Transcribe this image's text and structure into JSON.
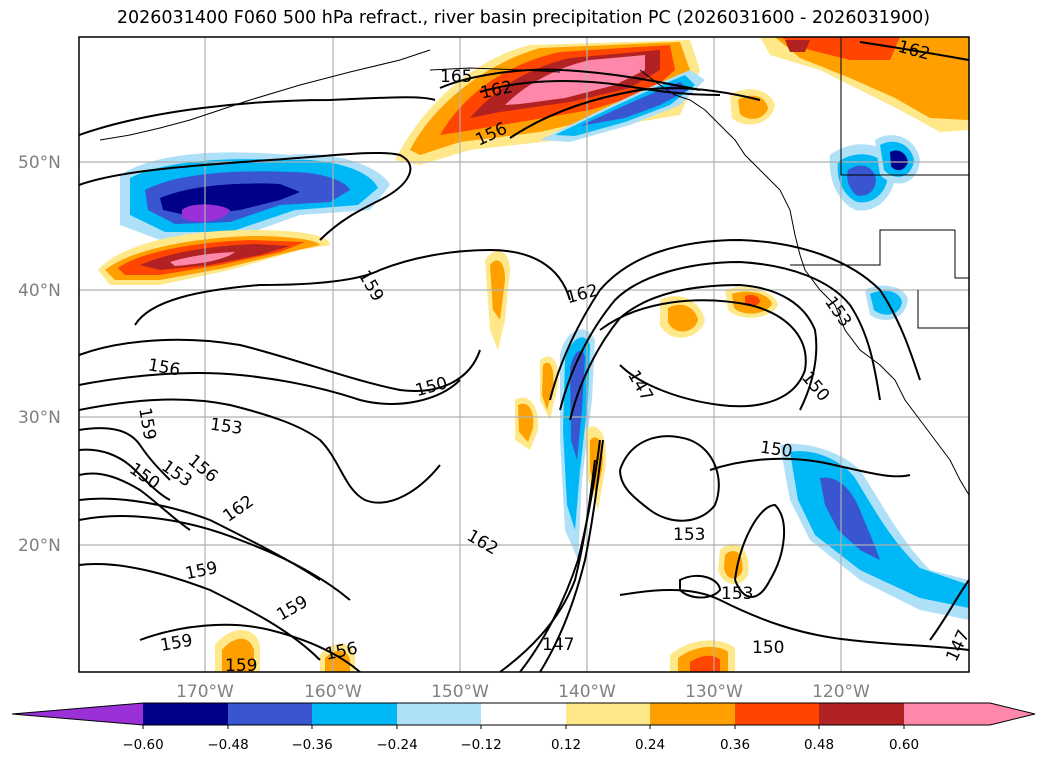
{
  "title": "2026031400 F060 500 hPa refract., river basin precipitation PC (2026031600 - 2026031900)",
  "lat_labels": [
    "50°N",
    "40°N",
    "30°N",
    "20°N"
  ],
  "lon_labels": [
    "170°W",
    "160°W",
    "150°W",
    "140°W",
    "130°W",
    "120°W"
  ],
  "contour_labels": [
    "165",
    "162",
    "162",
    "156",
    "159",
    "162",
    "156",
    "153",
    "150",
    "147",
    "153",
    "150",
    "159",
    "153",
    "150",
    "156",
    "162",
    "162",
    "150",
    "153",
    "153",
    "159",
    "159",
    "159",
    "159",
    "156",
    "147",
    "150",
    "147"
  ],
  "colorbar": {
    "ticks": [
      "−0.60",
      "−0.48",
      "−0.36",
      "−0.24",
      "−0.12",
      "0.12",
      "0.24",
      "0.36",
      "0.48",
      "0.60"
    ],
    "colors": [
      "#9b30d9",
      "#00008b",
      "#3a55d0",
      "#00b8f5",
      "#aee0f8",
      "#ffffff",
      "#ffe88a",
      "#ffa000",
      "#ff4500",
      "#b22222",
      "#ff88aa"
    ]
  },
  "chart_data": {
    "type": "map",
    "field_shaded": "river basin precipitation PC",
    "field_contoured": "500 hPa refract.",
    "lat_ticks": [
      50,
      40,
      30,
      20
    ],
    "lon_ticks": [
      -170,
      -160,
      -150,
      -140,
      -130,
      -120
    ],
    "colorbar_levels": [
      -0.6,
      -0.48,
      -0.36,
      -0.24,
      -0.12,
      0.12,
      0.24,
      0.36,
      0.48,
      0.6
    ],
    "contour_levels": [
      147,
      150,
      153,
      156,
      159,
      162,
      165
    ]
  }
}
